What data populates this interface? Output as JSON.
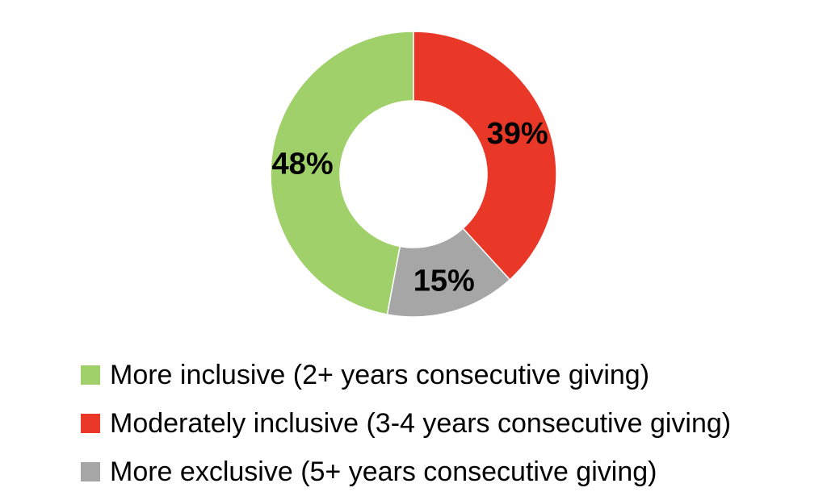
{
  "chart_data": {
    "type": "pie",
    "variant": "donut",
    "slices": [
      {
        "name": "More inclusive (2+ years consecutive giving)",
        "value": 48,
        "label": "48%",
        "color": "#A0D06A"
      },
      {
        "name": "Moderately inclusive (3-4 years consecutive giving)",
        "value": 39,
        "label": "39%",
        "color": "#E93728"
      },
      {
        "name": "More exclusive (5+ years consecutive giving)",
        "value": 15,
        "label": "15%",
        "color": "#A6A6A6"
      }
    ],
    "legend_position": "bottom",
    "title": ""
  }
}
